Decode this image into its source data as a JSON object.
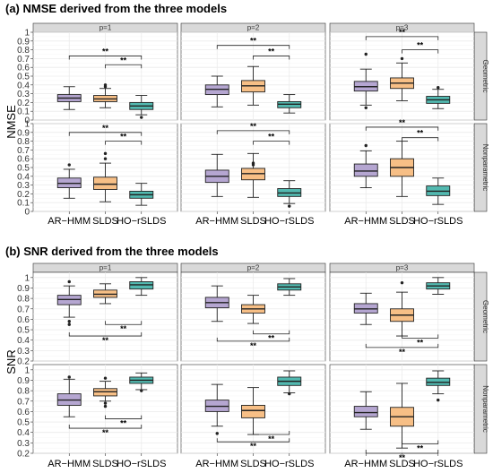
{
  "colors": {
    "ar_hmm": "#b5a6d1",
    "slds": "#f7bf86",
    "ho_rslds": "#52b9b0"
  },
  "chart_data": [
    {
      "type": "box",
      "title": "(a) NMSE derived from the three models",
      "ylabel": "NMSE",
      "ylim": [
        0,
        1
      ],
      "yticks": [
        "0",
        "0.1",
        "0.2",
        "0.3",
        "0.4",
        "0.5",
        "0.6",
        "0.7",
        "0.8",
        "0.9",
        "1"
      ],
      "ytick_values": [
        0,
        0.1,
        0.2,
        0.3,
        0.4,
        0.5,
        0.6,
        0.7,
        0.8,
        0.9,
        1
      ],
      "categories": [
        "AR−HMM",
        "SLDS",
        "HO−rSLDS"
      ],
      "facet_cols": [
        "p=1",
        "p=2",
        "p=3"
      ],
      "facet_rows": [
        "Geometric",
        "Nonparametric"
      ],
      "brackets": [
        {
          "from": 0,
          "to": 2,
          "label": "**"
        },
        {
          "from": 1,
          "to": 2,
          "label": "**"
        }
      ],
      "bracket_position": "above",
      "panels": [
        {
          "row": 0,
          "col": 0,
          "boxes": [
            {
              "stats": [
                0.12,
                0.21,
                0.25,
                0.29,
                0.38
              ],
              "outliers": []
            },
            {
              "stats": [
                0.14,
                0.21,
                0.24,
                0.28,
                0.36
              ],
              "outliers": [
                0.38,
                0.4
              ]
            },
            {
              "stats": [
                0.06,
                0.12,
                0.16,
                0.2,
                0.28
              ],
              "outliers": [
                0.03
              ]
            }
          ],
          "brackets_y": [
            0.73,
            0.63
          ]
        },
        {
          "row": 0,
          "col": 1,
          "boxes": [
            {
              "stats": [
                0.15,
                0.29,
                0.35,
                0.4,
                0.5
              ],
              "outliers": []
            },
            {
              "stats": [
                0.17,
                0.32,
                0.39,
                0.45,
                0.61
              ],
              "outliers": []
            },
            {
              "stats": [
                0.08,
                0.14,
                0.18,
                0.21,
                0.29
              ],
              "outliers": []
            }
          ],
          "brackets_y": [
            0.85,
            0.73
          ]
        },
        {
          "row": 0,
          "col": 2,
          "boxes": [
            {
              "stats": [
                0.17,
                0.33,
                0.38,
                0.44,
                0.58
              ],
              "outliers": [
                0.75,
                0.14
              ]
            },
            {
              "stats": [
                0.22,
                0.36,
                0.42,
                0.48,
                0.65
              ],
              "outliers": [
                0.7
              ]
            },
            {
              "stats": [
                0.13,
                0.19,
                0.23,
                0.27,
                0.35
              ],
              "outliers": [
                0.37
              ]
            }
          ],
          "brackets_y": [
            0.95,
            0.8
          ]
        },
        {
          "row": 1,
          "col": 0,
          "boxes": [
            {
              "stats": [
                0.15,
                0.27,
                0.32,
                0.38,
                0.48
              ],
              "outliers": [
                0.53
              ]
            },
            {
              "stats": [
                0.11,
                0.25,
                0.31,
                0.39,
                0.55
              ],
              "outliers": [
                0.6,
                0.66
              ]
            },
            {
              "stats": [
                0.07,
                0.15,
                0.19,
                0.23,
                0.32
              ],
              "outliers": []
            }
          ],
          "brackets_y": [
            0.9,
            0.8
          ]
        },
        {
          "row": 1,
          "col": 1,
          "boxes": [
            {
              "stats": [
                0.17,
                0.33,
                0.4,
                0.47,
                0.65
              ],
              "outliers": []
            },
            {
              "stats": [
                0.16,
                0.36,
                0.43,
                0.49,
                0.66
              ],
              "outliers": [
                0.53,
                0.55
              ]
            },
            {
              "stats": [
                0.09,
                0.17,
                0.21,
                0.26,
                0.35
              ],
              "outliers": [
                0.06
              ]
            }
          ],
          "brackets_y": [
            0.92,
            0.8
          ]
        },
        {
          "row": 1,
          "col": 2,
          "boxes": [
            {
              "stats": [
                0.27,
                0.4,
                0.46,
                0.54,
                0.69
              ],
              "outliers": [
                0.75
              ]
            },
            {
              "stats": [
                0.17,
                0.4,
                0.5,
                0.6,
                0.8
              ],
              "outliers": []
            },
            {
              "stats": [
                0.08,
                0.18,
                0.23,
                0.29,
                0.38
              ],
              "outliers": []
            }
          ],
          "brackets_y": [
            0.96,
            0.84
          ]
        }
      ]
    },
    {
      "type": "box",
      "title": "(b) SNR derived from the three models",
      "ylabel": "SNR",
      "ylim": [
        0.2,
        1.05
      ],
      "yticks": [
        "0.2",
        "0.3",
        "0.4",
        "0.5",
        "0.6",
        "0.7",
        "0.8",
        "0.9",
        "1"
      ],
      "ytick_values": [
        0.2,
        0.3,
        0.4,
        0.5,
        0.6,
        0.7,
        0.8,
        0.9,
        1
      ],
      "categories": [
        "AR−HMM",
        "SLDS",
        "HO−rSLDS"
      ],
      "facet_cols": [
        "p=1",
        "p=2",
        "p=3"
      ],
      "facet_rows": [
        "Geometric",
        "Nonparametric"
      ],
      "brackets": [
        {
          "from": 0,
          "to": 2,
          "label": "**"
        },
        {
          "from": 1,
          "to": 2,
          "label": "**"
        }
      ],
      "bracket_position": "below",
      "panels": [
        {
          "row": 0,
          "col": 0,
          "boxes": [
            {
              "stats": [
                0.62,
                0.74,
                0.79,
                0.83,
                0.92
              ],
              "outliers": [
                0.58,
                0.55,
                0.96
              ]
            },
            {
              "stats": [
                0.75,
                0.81,
                0.84,
                0.88,
                0.94
              ],
              "outliers": []
            },
            {
              "stats": [
                0.83,
                0.89,
                0.93,
                0.96,
                1.0
              ],
              "outliers": []
            }
          ],
          "brackets_y": [
            0.44,
            0.55
          ]
        },
        {
          "row": 0,
          "col": 1,
          "boxes": [
            {
              "stats": [
                0.58,
                0.71,
                0.76,
                0.81,
                0.92
              ],
              "outliers": []
            },
            {
              "stats": [
                0.56,
                0.66,
                0.7,
                0.74,
                0.83
              ],
              "outliers": []
            },
            {
              "stats": [
                0.83,
                0.88,
                0.91,
                0.94,
                0.99
              ],
              "outliers": []
            }
          ],
          "brackets_y": [
            0.39,
            0.46
          ]
        },
        {
          "row": 0,
          "col": 2,
          "boxes": [
            {
              "stats": [
                0.55,
                0.66,
                0.7,
                0.75,
                0.85
              ],
              "outliers": []
            },
            {
              "stats": [
                0.44,
                0.58,
                0.64,
                0.7,
                0.86
              ],
              "outliers": [
                0.95
              ]
            },
            {
              "stats": [
                0.84,
                0.89,
                0.92,
                0.95,
                1.0
              ],
              "outliers": []
            }
          ],
          "brackets_y": [
            0.33,
            0.42
          ]
        },
        {
          "row": 1,
          "col": 0,
          "boxes": [
            {
              "stats": [
                0.55,
                0.66,
                0.71,
                0.77,
                0.91
              ],
              "outliers": [
                0.93
              ]
            },
            {
              "stats": [
                0.7,
                0.75,
                0.79,
                0.82,
                0.89
              ],
              "outliers": [
                0.92,
                0.68,
                0.65
              ]
            },
            {
              "stats": [
                0.81,
                0.87,
                0.9,
                0.93,
                0.97
              ],
              "outliers": [
                0.8
              ]
            }
          ],
          "brackets_y": [
            0.44,
            0.53
          ]
        },
        {
          "row": 1,
          "col": 1,
          "boxes": [
            {
              "stats": [
                0.46,
                0.6,
                0.65,
                0.71,
                0.86
              ],
              "outliers": [
                0.39
              ]
            },
            {
              "stats": [
                0.38,
                0.54,
                0.61,
                0.66,
                0.83
              ],
              "outliers": []
            },
            {
              "stats": [
                0.78,
                0.85,
                0.89,
                0.93,
                0.99
              ],
              "outliers": [
                0.77
              ]
            }
          ],
          "brackets_y": [
            0.31,
            0.38
          ]
        },
        {
          "row": 1,
          "col": 2,
          "boxes": [
            {
              "stats": [
                0.43,
                0.55,
                0.59,
                0.65,
                0.79
              ],
              "outliers": []
            },
            {
              "stats": [
                0.25,
                0.46,
                0.55,
                0.64,
                0.87
              ],
              "outliers": []
            },
            {
              "stats": [
                0.77,
                0.85,
                0.88,
                0.92,
                0.99
              ],
              "outliers": [
                0.71
              ]
            }
          ],
          "brackets_y": [
            0.2,
            0.29
          ]
        }
      ]
    }
  ]
}
